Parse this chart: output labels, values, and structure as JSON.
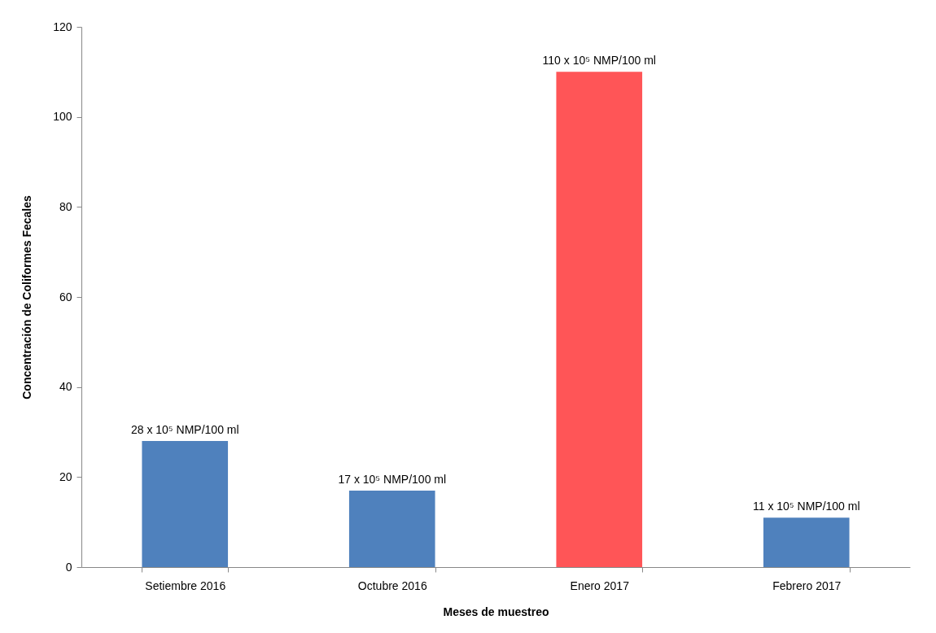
{
  "chart_data": {
    "type": "bar",
    "xlabel": "Meses de muestreo",
    "ylabel": "Concentración de Coliformes Fecales",
    "categories": [
      "Setiembre 2016",
      "Octubre 2016",
      "Enero 2017",
      "Febrero 2017"
    ],
    "values": [
      28,
      17,
      110,
      11
    ],
    "colors": [
      "#4f81bd",
      "#4f81bd",
      "#ff5557",
      "#4f81bd"
    ],
    "value_labels": [
      "28 x 10⁵ NMP/100 ml",
      "17 x 10⁵ NMP/100 ml",
      "110 x 10⁵ NMP/100 ml",
      "11 x 10⁵ NMP/100 ml"
    ],
    "ylim": [
      0,
      120
    ],
    "yticks": [
      0,
      20,
      40,
      60,
      80,
      100,
      120
    ],
    "grid": false,
    "legend": false
  }
}
